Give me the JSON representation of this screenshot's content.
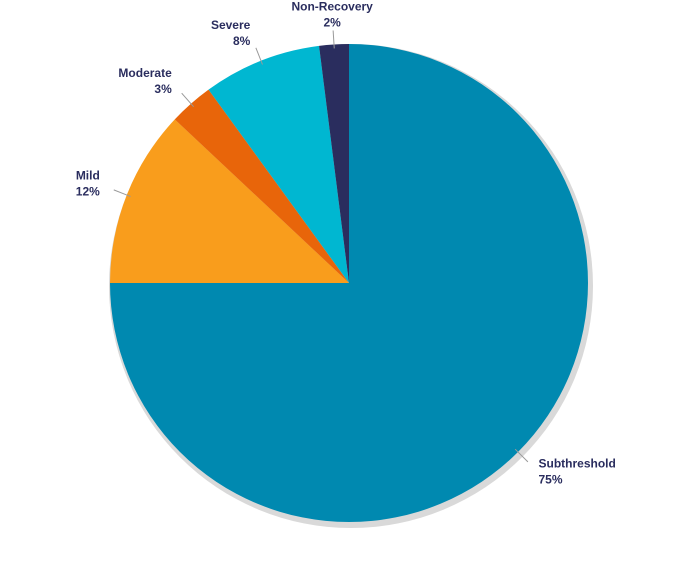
{
  "chart_data": {
    "type": "pie",
    "categories": [
      "Subthreshold",
      "Mild",
      "Moderate",
      "Severe",
      "Non-Recovery"
    ],
    "values": [
      75,
      12,
      3,
      8,
      2
    ],
    "value_labels": [
      "75%",
      "12%",
      "3%",
      "8%",
      "2%"
    ],
    "colors": [
      "#0089b0",
      "#f99d1c",
      "#e8650a",
      "#00b7d1",
      "#2a2d5e"
    ]
  }
}
